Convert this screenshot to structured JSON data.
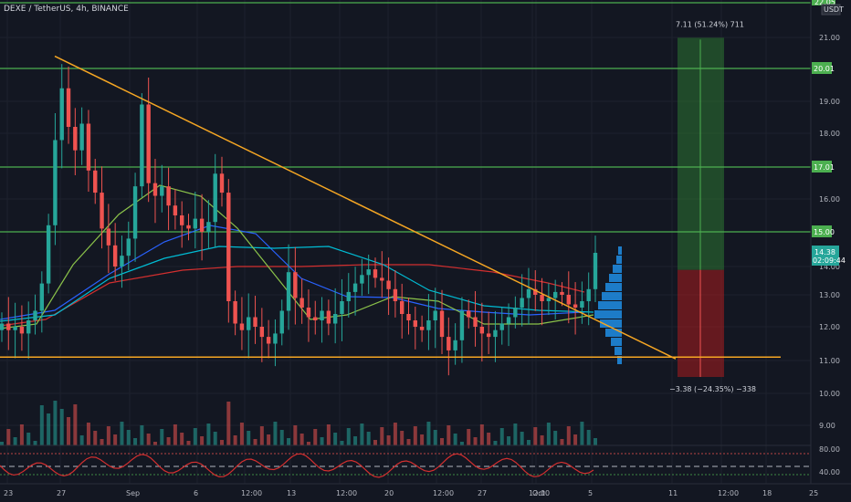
{
  "header": {
    "symbol": "DEXE / TetherUS, 4h, BINANCE"
  },
  "currency_button": "USDT",
  "colors": {
    "background": "#131722",
    "up": "#26a69a",
    "down": "#ef5350",
    "hline": "#4caf50",
    "trendline": "#f5a623",
    "profile": "#2196f3",
    "ma_red": "#d32f2f",
    "ma_blue": "#2962ff",
    "ma_cyan": "#00bcd4",
    "ma_green": "#8bc34a",
    "target_zone": "#2e7d32",
    "stop_zone": "#b71c1c"
  },
  "price_badges": [
    {
      "value": "20.01"
    },
    {
      "value": "17.01"
    },
    {
      "value": "15.00"
    }
  ],
  "current_price": {
    "value": "14.38",
    "countdown": "02:09:44"
  },
  "top_badge": "22.05",
  "annotations": {
    "target": "7.11 (51.24%) 711",
    "stop": "−3.38 (−24.35%) −338"
  },
  "chart_data": {
    "type": "candlestick",
    "title": "DEXE / TetherUS, 4h, BINANCE",
    "ylim": [
      8.5,
      22.3
    ],
    "y_ticks": [
      "21.00",
      "19.00",
      "18.00",
      "16.00",
      "14.00",
      "13.00",
      "12.00",
      "11.00",
      "10.00",
      "9.00"
    ],
    "x_ticks": [
      "23",
      "27",
      "Sep",
      "6",
      "12:00",
      "13",
      "12:00",
      "20",
      "12:00",
      "27",
      "12:00",
      "Oct",
      "5",
      "11",
      "12:00",
      "18",
      "25"
    ],
    "horizontal_levels": [
      22.05,
      20.01,
      17.01,
      15.0
    ],
    "support_level": 11.1,
    "trendline": {
      "start": [
        "Aug 27",
        20.4
      ],
      "end": [
        "Oct 11",
        11.05
      ]
    },
    "position": {
      "entry": 13.88,
      "target": 20.99,
      "stop": 10.5
    },
    "candles_close": [
      12.1,
      11.9,
      12.0,
      11.8,
      12.2,
      12.5,
      13.4,
      15.2,
      17.8,
      19.4,
      18.2,
      17.5,
      18.3,
      16.9,
      16.2,
      15.1,
      14.6,
      14.0,
      14.3,
      14.8,
      16.4,
      18.9,
      16.5,
      16.1,
      16.4,
      15.8,
      15.5,
      15.2,
      15.1,
      15.4,
      15.0,
      15.3,
      16.8,
      16.2,
      12.8,
      12.1,
      11.9,
      12.3,
      12.0,
      11.7,
      11.5,
      11.8,
      12.5,
      13.8,
      12.9,
      12.6,
      12.3,
      12.2,
      12.5,
      12.1,
      12.4,
      12.8,
      13.1,
      13.4,
      13.7,
      13.9,
      13.6,
      13.5,
      13.2,
      12.8,
      12.4,
      12.2,
      12.0,
      11.9,
      12.2,
      12.5,
      11.7,
      11.3,
      11.6,
      12.5,
      12.3,
      12.0,
      11.8,
      11.7,
      11.9,
      12.1,
      12.3,
      12.6,
      12.9,
      13.2,
      13.0,
      12.8,
      12.9,
      13.1,
      13.0,
      12.7,
      12.6,
      12.8,
      13.2,
      14.38
    ],
    "rsi": {
      "levels": [
        "80.00",
        "40.00"
      ]
    }
  }
}
